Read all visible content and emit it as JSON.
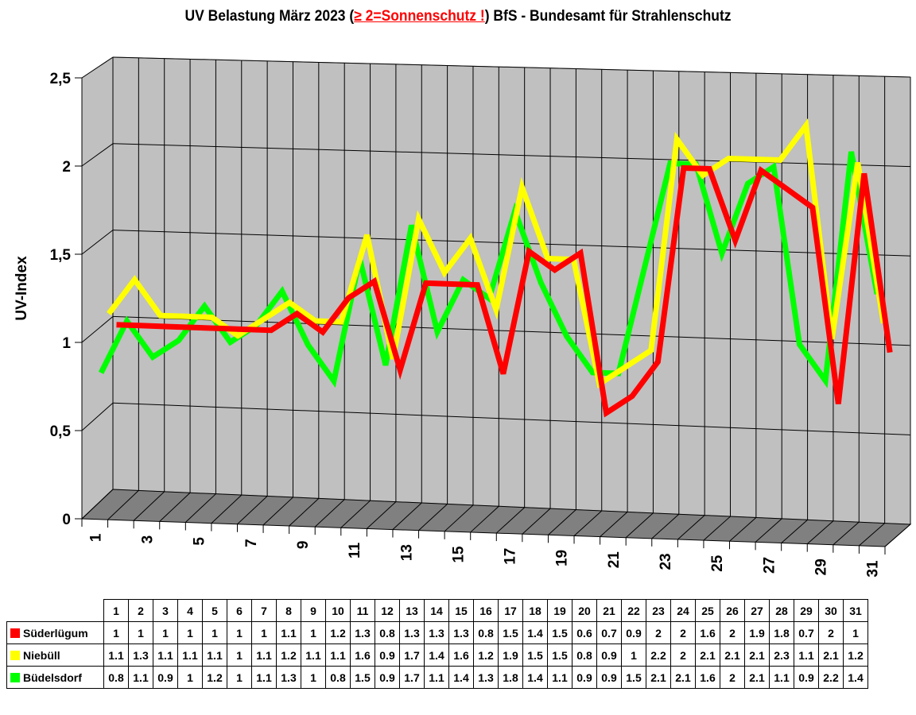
{
  "title": {
    "prefix": "UV Belastung März 2023 (",
    "warning": "≥ 2=Sonnenschutz !",
    "suffix": ") BfS - Bundesamt für Strahlenschutz"
  },
  "axis": {
    "ylabel": "UV-Index",
    "yticks": [
      "0",
      "0,5",
      "1",
      "1,5",
      "2",
      "2,5"
    ],
    "xticks": [
      "1",
      "3",
      "5",
      "7",
      "9",
      "11",
      "13",
      "15",
      "17",
      "19",
      "21",
      "23",
      "25",
      "27",
      "29",
      "31"
    ]
  },
  "table": {
    "days": [
      "1",
      "2",
      "3",
      "4",
      "5",
      "6",
      "7",
      "8",
      "9",
      "10",
      "11",
      "12",
      "13",
      "14",
      "15",
      "16",
      "17",
      "18",
      "19",
      "20",
      "21",
      "22",
      "23",
      "24",
      "25",
      "26",
      "27",
      "28",
      "29",
      "30",
      "31"
    ],
    "rows": [
      {
        "name": "Süderlügum",
        "color": "#ff0000",
        "values": [
          "1",
          "1",
          "1",
          "1",
          "1",
          "1",
          "1",
          "1.1",
          "1",
          "1.2",
          "1.3",
          "0.8",
          "1.3",
          "1.3",
          "1.3",
          "0.8",
          "1.5",
          "1.4",
          "1.5",
          "0.6",
          "0.7",
          "0.9",
          "2",
          "2",
          "1.6",
          "2",
          "1.9",
          "1.8",
          "0.7",
          "2",
          "1"
        ]
      },
      {
        "name": "Niebüll",
        "color": "#ffff00",
        "values": [
          "1.1",
          "1.3",
          "1.1",
          "1.1",
          "1.1",
          "1",
          "1.1",
          "1.2",
          "1.1",
          "1.1",
          "1.6",
          "0.9",
          "1.7",
          "1.4",
          "1.6",
          "1.2",
          "1.9",
          "1.5",
          "1.5",
          "0.8",
          "0.9",
          "1",
          "2.2",
          "2",
          "2.1",
          "2.1",
          "2.1",
          "2.3",
          "1.1",
          "2.1",
          "1.2"
        ]
      },
      {
        "name": "Büdelsdorf",
        "color": "#00ff00",
        "values": [
          "0.8",
          "1.1",
          "0.9",
          "1",
          "1.2",
          "1",
          "1.1",
          "1.3",
          "1",
          "0.8",
          "1.5",
          "0.9",
          "1.7",
          "1.1",
          "1.4",
          "1.3",
          "1.8",
          "1.4",
          "1.1",
          "0.9",
          "0.9",
          "1.5",
          "2.1",
          "2.1",
          "1.6",
          "2",
          "2.1",
          "1.1",
          "0.9",
          "2.2",
          "1.4"
        ]
      }
    ]
  },
  "chart_data": {
    "type": "line",
    "title": "UV Belastung März 2023 (≥ 2=Sonnenschutz !) BfS - Bundesamt für Strahlenschutz",
    "xlabel": "",
    "ylabel": "UV-Index",
    "ylim": [
      0,
      2.5
    ],
    "grid": true,
    "legend_position": "table-below",
    "x": [
      1,
      2,
      3,
      4,
      5,
      6,
      7,
      8,
      9,
      10,
      11,
      12,
      13,
      14,
      15,
      16,
      17,
      18,
      19,
      20,
      21,
      22,
      23,
      24,
      25,
      26,
      27,
      28,
      29,
      30,
      31
    ],
    "series": [
      {
        "name": "Süderlügum",
        "color": "#ff0000",
        "values": [
          1,
          1,
          1,
          1,
          1,
          1,
          1,
          1.1,
          1,
          1.2,
          1.3,
          0.8,
          1.3,
          1.3,
          1.3,
          0.8,
          1.5,
          1.4,
          1.5,
          0.6,
          0.7,
          0.9,
          2,
          2,
          1.6,
          2,
          1.9,
          1.8,
          0.7,
          2,
          1
        ]
      },
      {
        "name": "Niebüll",
        "color": "#ffff00",
        "values": [
          1.1,
          1.3,
          1.1,
          1.1,
          1.1,
          1,
          1.1,
          1.2,
          1.1,
          1.1,
          1.6,
          0.9,
          1.7,
          1.4,
          1.6,
          1.2,
          1.9,
          1.5,
          1.5,
          0.8,
          0.9,
          1,
          2.2,
          2,
          2.1,
          2.1,
          2.1,
          2.3,
          1.1,
          2.1,
          1.2
        ]
      },
      {
        "name": "Büdelsdorf",
        "color": "#00ff00",
        "values": [
          0.8,
          1.1,
          0.9,
          1,
          1.2,
          1,
          1.1,
          1.3,
          1,
          0.8,
          1.5,
          0.9,
          1.7,
          1.1,
          1.4,
          1.3,
          1.8,
          1.4,
          1.1,
          0.9,
          0.9,
          1.5,
          2.1,
          2.1,
          1.6,
          2,
          2.1,
          1.1,
          0.9,
          2.2,
          1.4
        ]
      }
    ]
  }
}
